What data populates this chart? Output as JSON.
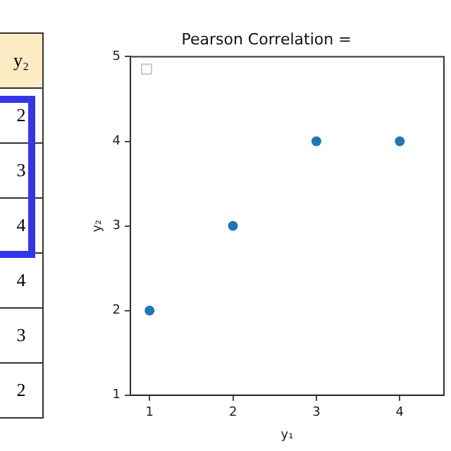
{
  "chart_data": [
    {
      "type": "other",
      "title": "y₂",
      "values": [
        2,
        3,
        4,
        4,
        3,
        2
      ],
      "value_labels": [
        "2",
        "3",
        "4",
        "4",
        "3",
        "2"
      ]
    },
    {
      "type": "scatter",
      "title": "Pearson Correlation =",
      "xlabel": "y₁",
      "ylabel": "y₂",
      "x": [
        1,
        2,
        3,
        4
      ],
      "values": [
        2,
        3,
        4,
        4
      ],
      "color": "#1f77b4",
      "xlim": [
        0.77,
        4.53
      ],
      "xticks": [
        1,
        2,
        3,
        4
      ],
      "ylim": [
        1,
        5
      ],
      "yticks": [
        1,
        2,
        3,
        4,
        5
      ],
      "grid": false,
      "marker": "circle"
    }
  ]
}
